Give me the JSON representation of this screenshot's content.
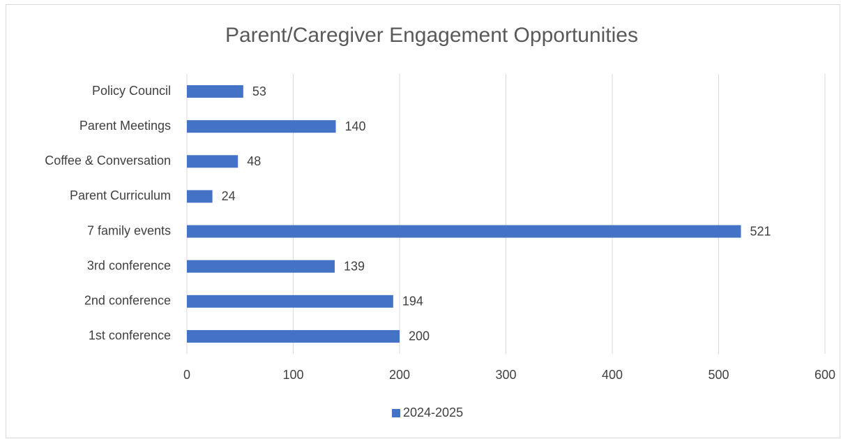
{
  "chart_data": {
    "type": "bar",
    "orientation": "horizontal",
    "title": "Parent/Caregiver Engagement Opportunities",
    "categories": [
      "Policy Council",
      "Parent Meetings",
      "Coffee & Conversation",
      "Parent Curriculum",
      "7 family events",
      "3rd conference",
      "2nd conference",
      "1st conference"
    ],
    "series": [
      {
        "name": "2024-2025",
        "color": "#4472c4",
        "values": [
          53,
          140,
          48,
          24,
          521,
          139,
          194,
          200
        ]
      }
    ],
    "xlim": [
      0,
      600
    ],
    "xticks": [
      0,
      100,
      200,
      300,
      400,
      500,
      600
    ],
    "grid": true,
    "legend": "bottom"
  }
}
